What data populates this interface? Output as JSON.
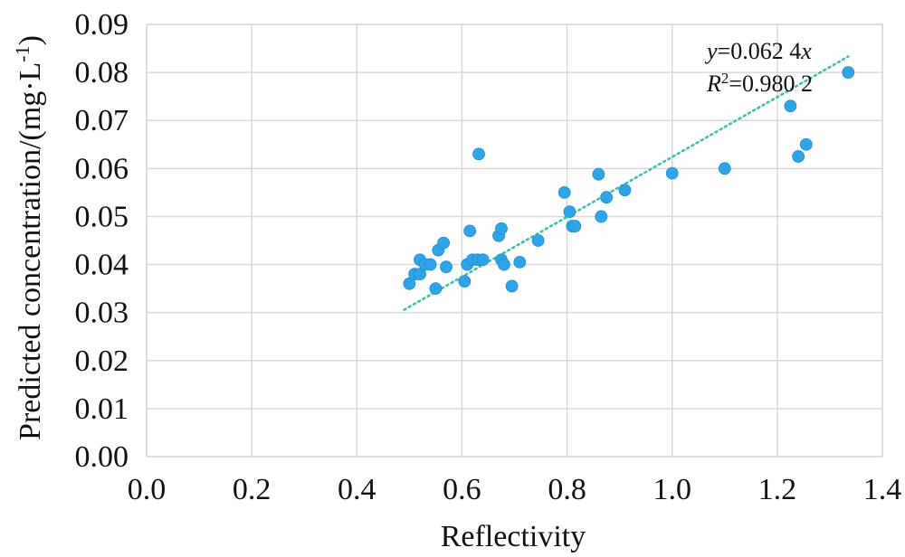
{
  "chart_data": {
    "type": "scatter",
    "title": "",
    "xlabel": "Reflectivity",
    "ylabel": "Predicted concentration/(mg·L",
    "ylabel_sup": "-1",
    "ylabel_close": ")",
    "xlim": [
      0.0,
      1.4
    ],
    "ylim": [
      0.0,
      0.09
    ],
    "x_ticks": [
      "0.0",
      "0.2",
      "0.4",
      "0.6",
      "0.8",
      "1.0",
      "1.2",
      "1.4"
    ],
    "y_ticks": [
      "0.00",
      "0.01",
      "0.02",
      "0.03",
      "0.04",
      "0.05",
      "0.06",
      "0.07",
      "0.08",
      "0.09"
    ],
    "grid": true,
    "points": [
      {
        "x": 0.5,
        "y": 0.036
      },
      {
        "x": 0.51,
        "y": 0.038
      },
      {
        "x": 0.52,
        "y": 0.041
      },
      {
        "x": 0.52,
        "y": 0.038
      },
      {
        "x": 0.53,
        "y": 0.04
      },
      {
        "x": 0.54,
        "y": 0.04
      },
      {
        "x": 0.55,
        "y": 0.035
      },
      {
        "x": 0.555,
        "y": 0.043
      },
      {
        "x": 0.565,
        "y": 0.0445
      },
      {
        "x": 0.57,
        "y": 0.0395
      },
      {
        "x": 0.605,
        "y": 0.0365
      },
      {
        "x": 0.61,
        "y": 0.04
      },
      {
        "x": 0.615,
        "y": 0.047
      },
      {
        "x": 0.62,
        "y": 0.041
      },
      {
        "x": 0.63,
        "y": 0.041
      },
      {
        "x": 0.64,
        "y": 0.041
      },
      {
        "x": 0.632,
        "y": 0.063
      },
      {
        "x": 0.67,
        "y": 0.046
      },
      {
        "x": 0.675,
        "y": 0.0475
      },
      {
        "x": 0.675,
        "y": 0.041
      },
      {
        "x": 0.68,
        "y": 0.04
      },
      {
        "x": 0.695,
        "y": 0.0355
      },
      {
        "x": 0.71,
        "y": 0.0405
      },
      {
        "x": 0.745,
        "y": 0.045
      },
      {
        "x": 0.795,
        "y": 0.055
      },
      {
        "x": 0.805,
        "y": 0.051
      },
      {
        "x": 0.81,
        "y": 0.048
      },
      {
        "x": 0.815,
        "y": 0.048
      },
      {
        "x": 0.86,
        "y": 0.0588
      },
      {
        "x": 0.865,
        "y": 0.05
      },
      {
        "x": 0.875,
        "y": 0.054
      },
      {
        "x": 0.91,
        "y": 0.0555
      },
      {
        "x": 1.0,
        "y": 0.059
      },
      {
        "x": 1.1,
        "y": 0.06
      },
      {
        "x": 1.225,
        "y": 0.073
      },
      {
        "x": 1.24,
        "y": 0.0625
      },
      {
        "x": 1.255,
        "y": 0.065
      },
      {
        "x": 1.335,
        "y": 0.08
      }
    ],
    "trendline": {
      "slope": 0.0624,
      "x_start": 0.49,
      "x_end": 1.335,
      "equation_y": "y",
      "equation_rest": "=0.062 4",
      "equation_x": "x",
      "r2_r": "R",
      "r2_sup": "2",
      "r2_rest": "=0.980 2"
    }
  },
  "colors": {
    "point": "#2fa4e7",
    "trend": "#3dbfa8",
    "grid": "#d9d9d9"
  }
}
